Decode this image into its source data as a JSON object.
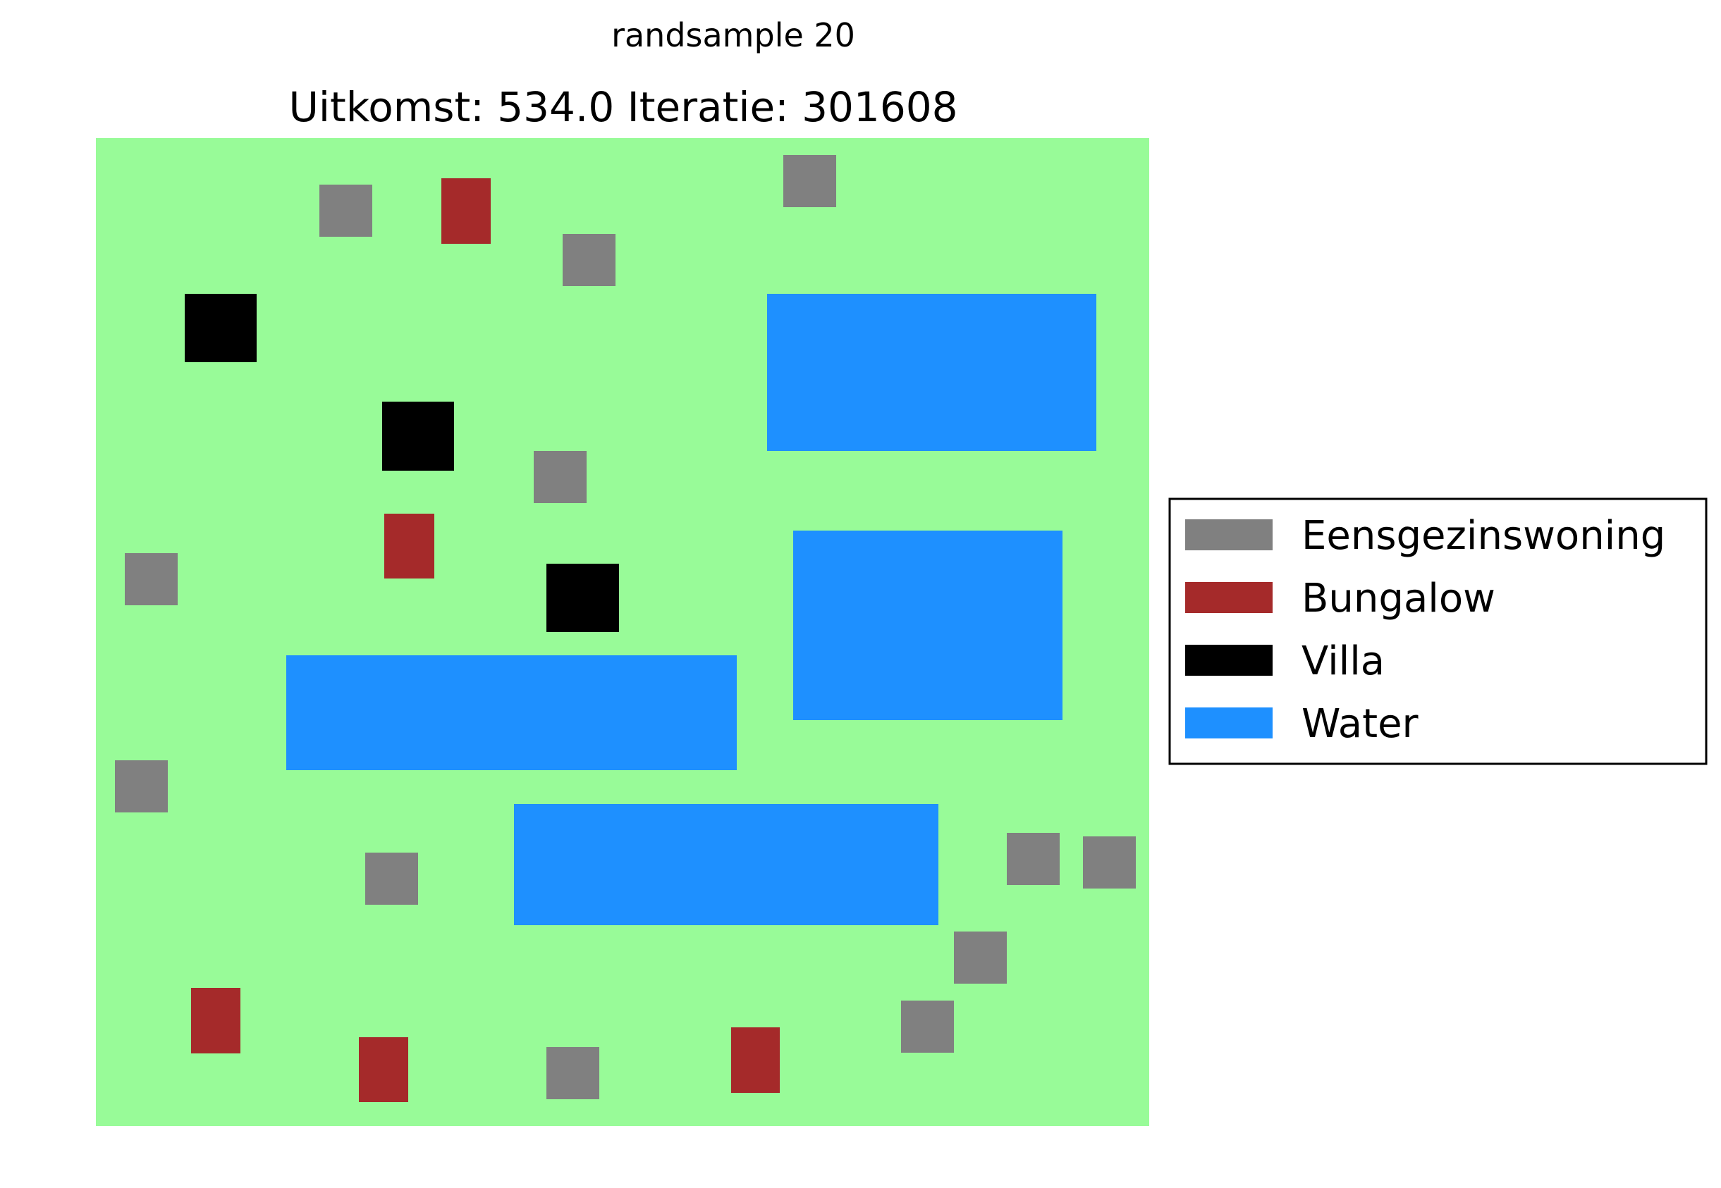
{
  "header": {
    "suptitle": "randsample 20",
    "title": "Uitkomst: 534.0 Iteratie: 301608"
  },
  "map": {
    "background_color": "#98fb98",
    "items": [
      {
        "type": "eengezinswoning"
      },
      {
        "type": "bungalow"
      },
      {
        "type": "eengezinswoning"
      },
      {
        "type": "eengezinswoning"
      },
      {
        "type": "villa"
      },
      {
        "type": "water"
      },
      {
        "type": "villa"
      },
      {
        "type": "eengezinswoning"
      },
      {
        "type": "bungalow"
      },
      {
        "type": "eengezinswoning"
      },
      {
        "type": "water"
      },
      {
        "type": "villa"
      },
      {
        "type": "water"
      },
      {
        "type": "eengezinswoning"
      },
      {
        "type": "water"
      },
      {
        "type": "eengezinswoning"
      },
      {
        "type": "eengezinswoning"
      },
      {
        "type": "eengezinswoning"
      },
      {
        "type": "eengezinswoning"
      },
      {
        "type": "eengezinswoning"
      },
      {
        "type": "bungalow"
      },
      {
        "type": "bungalow"
      },
      {
        "type": "eengezinswoning"
      },
      {
        "type": "bungalow"
      }
    ]
  },
  "legend": {
    "placement": "center-right",
    "entries": [
      {
        "key": "eengezinswoning",
        "label": "Eensgezinswoning",
        "color": "#808080"
      },
      {
        "key": "bungalow",
        "label": "Bungalow",
        "color": "#a52a2a"
      },
      {
        "key": "villa",
        "label": "Villa",
        "color": "#000000"
      },
      {
        "key": "water",
        "label": "Water",
        "color": "#1e90ff"
      }
    ]
  }
}
